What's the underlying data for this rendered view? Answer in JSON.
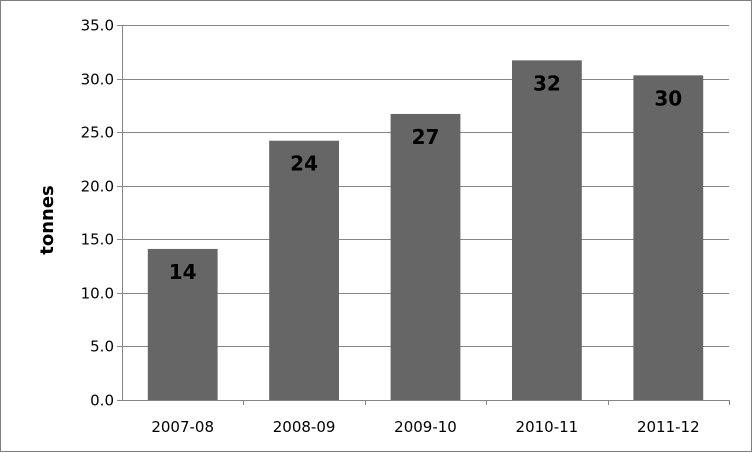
{
  "chart_data": {
    "type": "bar",
    "title": "",
    "xlabel": "",
    "ylabel": "tonnes",
    "categories": [
      "2007-08",
      "2008-09",
      "2009-10",
      "2010-11",
      "2011-12"
    ],
    "values": [
      14.1,
      24.2,
      26.7,
      31.7,
      30.3
    ],
    "data_labels": [
      "14",
      "24",
      "27",
      "32",
      "30"
    ],
    "ylim": [
      0,
      35
    ],
    "ytick_values": [
      0,
      5,
      10,
      15,
      20,
      25,
      30,
      35
    ],
    "ytick_labels": [
      "0.0",
      "5.0",
      "10.0",
      "15.0",
      "20.0",
      "25.0",
      "30.0",
      "35.0"
    ],
    "grid": true,
    "legend": "none",
    "bar_color": "#666666",
    "grid_color": "#868686"
  }
}
